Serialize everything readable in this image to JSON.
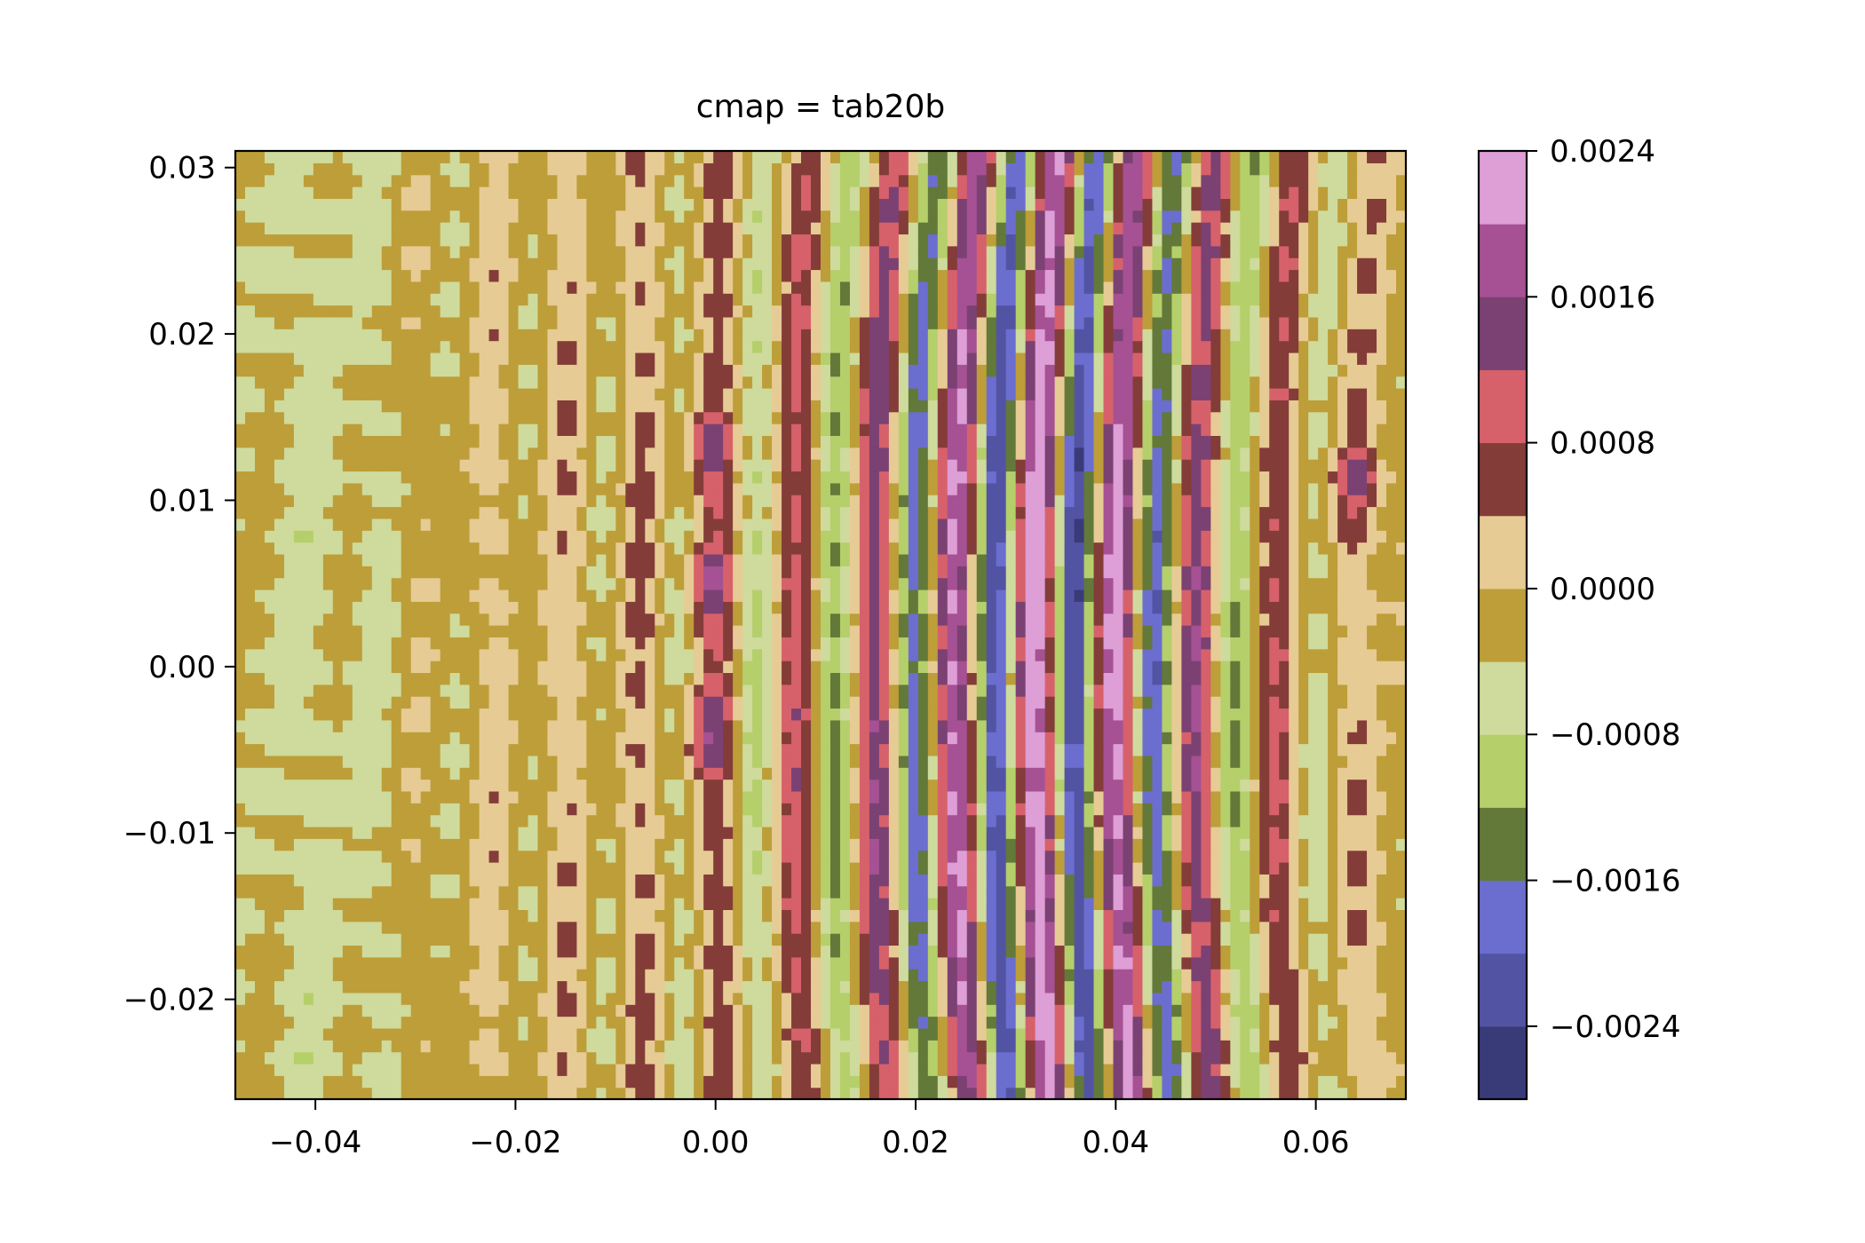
{
  "chart_data": {
    "type": "heatmap",
    "subtype": "filled-contour",
    "title": "cmap = tab20b",
    "xlabel": "",
    "ylabel": "",
    "xlim": [
      -0.048,
      0.069
    ],
    "ylim": [
      -0.026,
      0.031
    ],
    "x_ticks": [
      -0.04,
      -0.02,
      0.0,
      0.02,
      0.04,
      0.06
    ],
    "x_tick_labels": [
      "−0.04",
      "−0.02",
      "0.00",
      "0.02",
      "0.04",
      "0.06"
    ],
    "y_ticks": [
      -0.02,
      -0.01,
      0.0,
      0.01,
      0.02,
      0.03
    ],
    "y_tick_labels": [
      "−0.02",
      "−0.01",
      "0.00",
      "0.01",
      "0.02",
      "0.03"
    ],
    "colormap": "tab20b",
    "colorbar": {
      "vmin": -0.0028,
      "vmax": 0.0024,
      "ticks": [
        -0.0024,
        -0.0016,
        -0.0008,
        0.0,
        0.0008,
        0.0016,
        0.0024
      ],
      "tick_labels": [
        "−0.0024",
        "−0.0016",
        "−0.0008",
        "0.0000",
        "0.0008",
        "0.0016",
        "0.0024"
      ],
      "levels": [
        -0.0028,
        -0.0024,
        -0.002,
        -0.0016,
        -0.0012,
        -0.0008,
        -0.0004,
        0.0,
        0.0004,
        0.0008,
        0.0012,
        0.0016,
        0.002,
        0.0024
      ],
      "colors": [
        "#393b79",
        "#5254a3",
        "#6b6ecf",
        "#637939",
        "#b5cf6b",
        "#cedb9c",
        "#bd9e39",
        "#e7cb94",
        "#843c39",
        "#d6616b",
        "#7b4173",
        "#a55194",
        "#de9ed6"
      ]
    },
    "field_features": {
      "stripe_x_centers": [
        0.009,
        0.014,
        0.018,
        0.022,
        0.026,
        0.03,
        0.034,
        0.038,
        0.042,
        0.046,
        0.05,
        0.054,
        0.058
      ],
      "peak_amplitude": 0.0024,
      "blob_centers": [
        [
          -0.001,
          0.013
        ],
        [
          -0.001,
          0.005
        ],
        [
          -0.001,
          -0.004
        ],
        [
          0.064,
          0.011
        ]
      ],
      "grid_nx": 120,
      "grid_ny": 80
    }
  }
}
